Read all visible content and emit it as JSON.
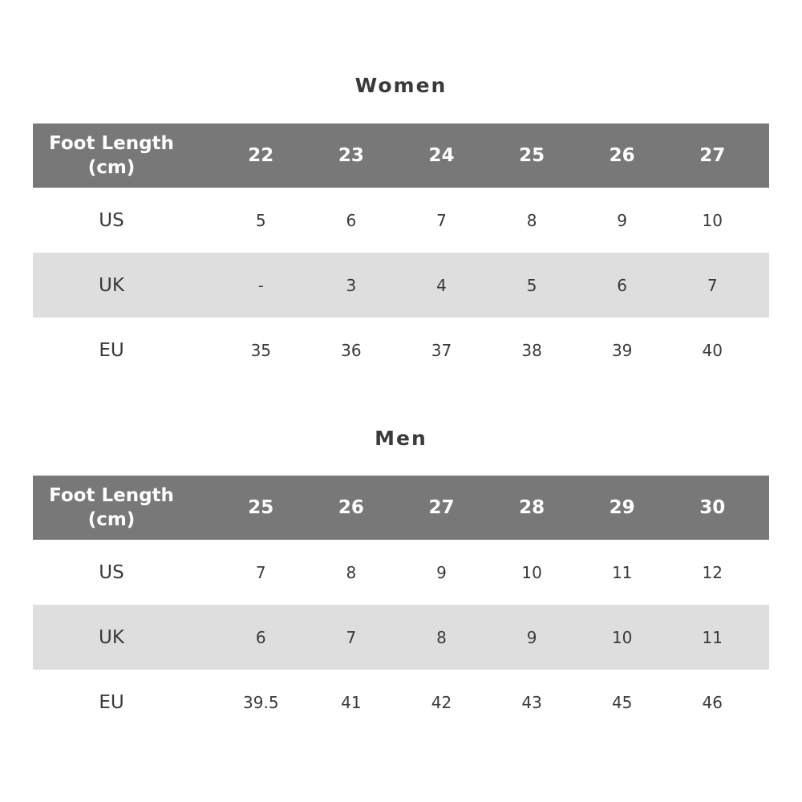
{
  "tables": [
    {
      "title": "Women",
      "header_label": [
        "Foot Length",
        "(cm)"
      ],
      "foot_length": [
        "22",
        "23",
        "24",
        "25",
        "26",
        "27"
      ],
      "rows": [
        {
          "label": "US",
          "values": [
            "5",
            "6",
            "7",
            "8",
            "9",
            "10"
          ]
        },
        {
          "label": "UK",
          "values": [
            "-",
            "3",
            "4",
            "5",
            "6",
            "7"
          ]
        },
        {
          "label": "EU",
          "values": [
            "35",
            "36",
            "37",
            "38",
            "39",
            "40"
          ]
        }
      ]
    },
    {
      "title": "Men",
      "header_label": [
        "Foot Length",
        "(cm)"
      ],
      "foot_length": [
        "25",
        "26",
        "27",
        "28",
        "29",
        "30"
      ],
      "rows": [
        {
          "label": "US",
          "values": [
            "7",
            "8",
            "9",
            "10",
            "11",
            "12"
          ]
        },
        {
          "label": "UK",
          "values": [
            "6",
            "7",
            "8",
            "9",
            "10",
            "11"
          ]
        },
        {
          "label": "EU",
          "values": [
            "39.5",
            "41",
            "42",
            "43",
            "45",
            "46"
          ]
        }
      ]
    }
  ],
  "colors": {
    "header_bg": "#787878",
    "stripe_bg": "#dedede",
    "text": "#3a3a3a"
  }
}
